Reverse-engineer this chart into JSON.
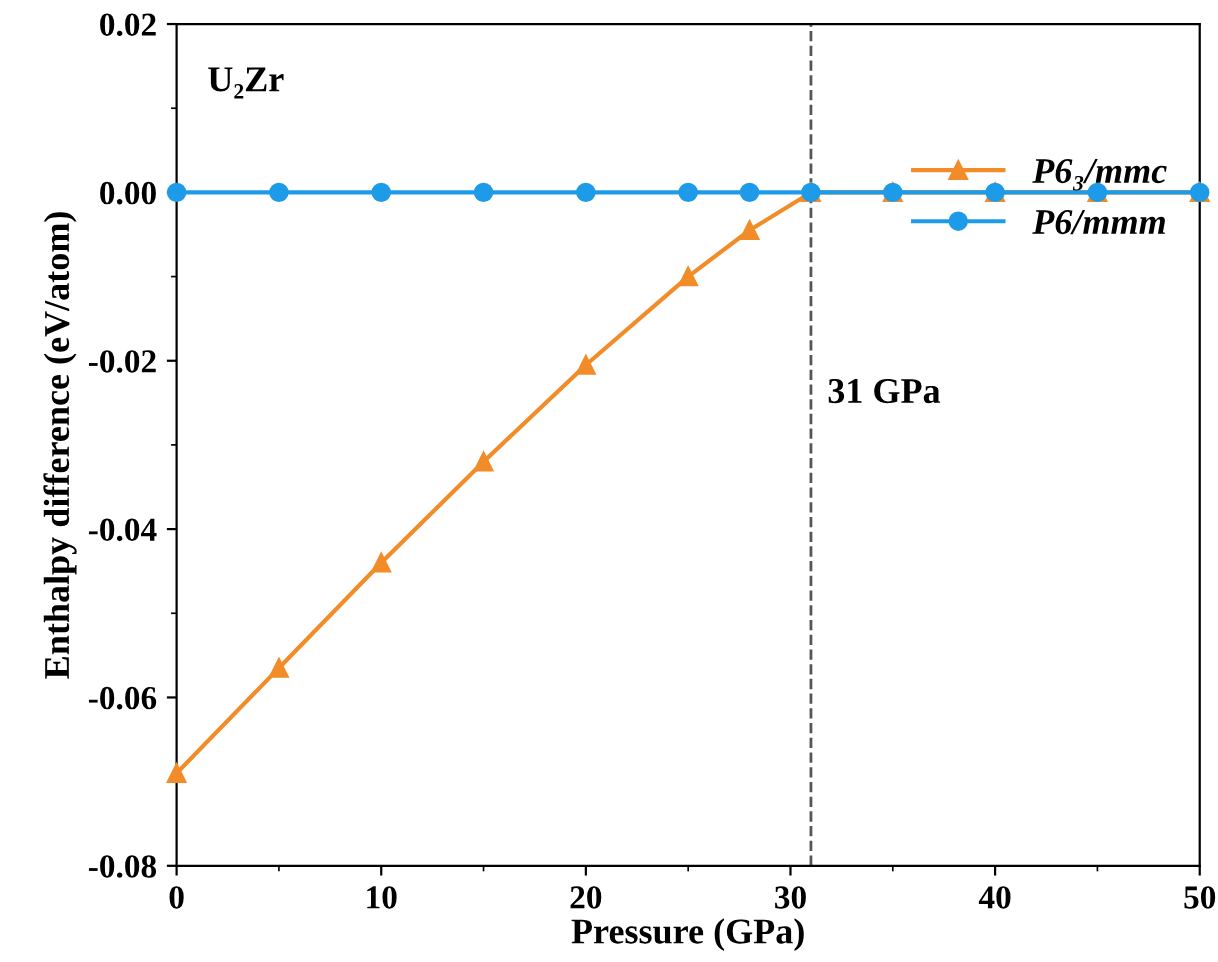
{
  "chart_data": {
    "type": "line",
    "xlabel": "Pressure (GPa)",
    "ylabel": "Enthalpy difference (eV/atom)",
    "xlim": [
      0,
      50
    ],
    "xticks": [
      0,
      10,
      20,
      30,
      40,
      50
    ],
    "ylim": [
      -0.08,
      0.02
    ],
    "yticks": [
      {
        "value": -0.08,
        "label": "-0.08"
      },
      {
        "value": -0.06,
        "label": "-0.06"
      },
      {
        "value": -0.04,
        "label": "-0.04"
      },
      {
        "value": -0.02,
        "label": "-0.02"
      },
      {
        "value": 0,
        "label": "0.00"
      },
      {
        "value": 0.02,
        "label": "0.02"
      }
    ],
    "series": [
      {
        "name": "P6₃/mmc",
        "color": "#f28c28",
        "marker": "triangle",
        "x": [
          0,
          5,
          10,
          15,
          20,
          25,
          28,
          31,
          35,
          40,
          45,
          50
        ],
        "values": [
          -0.069,
          -0.0565,
          -0.044,
          -0.032,
          -0.0205,
          -0.01,
          -0.0045,
          0,
          0,
          0,
          0,
          0
        ]
      },
      {
        "name": "P6/mmm",
        "color": "#1e9be8",
        "marker": "circle",
        "x": [
          0,
          5,
          10,
          15,
          20,
          25,
          28,
          31,
          35,
          40,
          45,
          50
        ],
        "values": [
          0,
          0,
          0,
          0,
          0,
          0,
          0,
          0,
          0,
          0,
          0,
          0
        ]
      }
    ],
    "ref_lines": [
      {
        "axis": "x",
        "value": 31,
        "label": "31 GPa",
        "color": "#555555",
        "line_style": "dashed"
      }
    ],
    "annotations": [
      "U₂Zr"
    ],
    "legend": "top right",
    "grid": false,
    "line_style": "solid"
  }
}
